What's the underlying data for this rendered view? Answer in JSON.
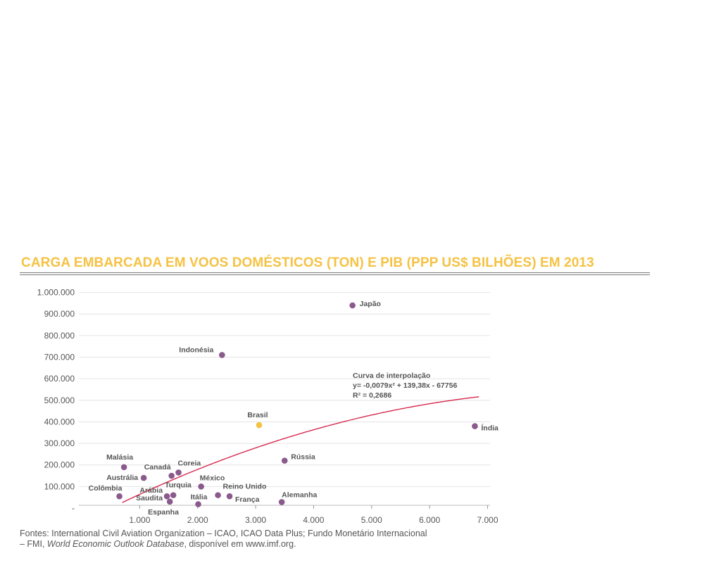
{
  "chart_data": {
    "type": "scatter",
    "title": "CARGA EMBARCADA EM VOOS DOMÉSTICOS (TON) E PIB (PPP US$ BILHÕES) EM 2013",
    "xlabel": "",
    "ylabel": "",
    "xlim": [
      0,
      7000
    ],
    "ylim": [
      0,
      1000000
    ],
    "grid": true,
    "x_ticks": [
      "1.000",
      "2.000",
      "3.000",
      "4.000",
      "5.000",
      "6.000",
      "7.000"
    ],
    "y_ticks": [
      "-",
      "100.000",
      "200.000",
      "300.000",
      "400.000",
      "500.000",
      "600.000",
      "700.000",
      "800.000",
      "900.000",
      "1.000.000"
    ],
    "points": [
      {
        "label": "Japão",
        "x": 4670,
        "y": 940000
      },
      {
        "label": "Indonésia",
        "x": 2420,
        "y": 710000
      },
      {
        "label": "Brasil",
        "x": 3060,
        "y": 385000,
        "highlight": true
      },
      {
        "label": "Índia",
        "x": 6780,
        "y": 380000
      },
      {
        "label": "Rússia",
        "x": 3500,
        "y": 220000
      },
      {
        "label": "Malásia",
        "x": 730,
        "y": 190000
      },
      {
        "label": "Coreia",
        "x": 1670,
        "y": 165000
      },
      {
        "label": "Canadá",
        "x": 1550,
        "y": 150000
      },
      {
        "label": "Austrália",
        "x": 1070,
        "y": 140000
      },
      {
        "label": "México",
        "x": 2060,
        "y": 100000
      },
      {
        "label": "Reino Unido",
        "x": 2350,
        "y": 60000
      },
      {
        "label": "Colômbia",
        "x": 650,
        "y": 55000
      },
      {
        "label": "Arábia Saudita",
        "x": 1470,
        "y": 55000
      },
      {
        "label": "Turquia",
        "x": 1580,
        "y": 60000
      },
      {
        "label": "França",
        "x": 2550,
        "y": 55000
      },
      {
        "label": "Espanha",
        "x": 1520,
        "y": 30000
      },
      {
        "label": "Alemanha",
        "x": 3450,
        "y": 28000
      },
      {
        "label": "Itália",
        "x": 2010,
        "y": 18000
      }
    ],
    "fit": {
      "label_lines": [
        "Curva de interpolação",
        "y= -0,0079x² + 139,38x - 67756",
        "R² = 0,2686"
      ],
      "a": -0.0079,
      "b": 139.38,
      "c": -67756,
      "x_range": [
        700,
        6850
      ],
      "color": "#d62a4f"
    },
    "colors": {
      "point": "#8b5a8c",
      "highlight": "#f5c243",
      "title": "#f5c243"
    }
  },
  "source_line1": "Fontes: International Civil Aviation Organization – ICAO, ICAO Data Plus; Fundo Monetário Internacional",
  "source_line2_prefix": "– FMI, ",
  "source_line2_italic": "World Economic Outlook Database",
  "source_line2_suffix": ", disponível em www.imf.org."
}
